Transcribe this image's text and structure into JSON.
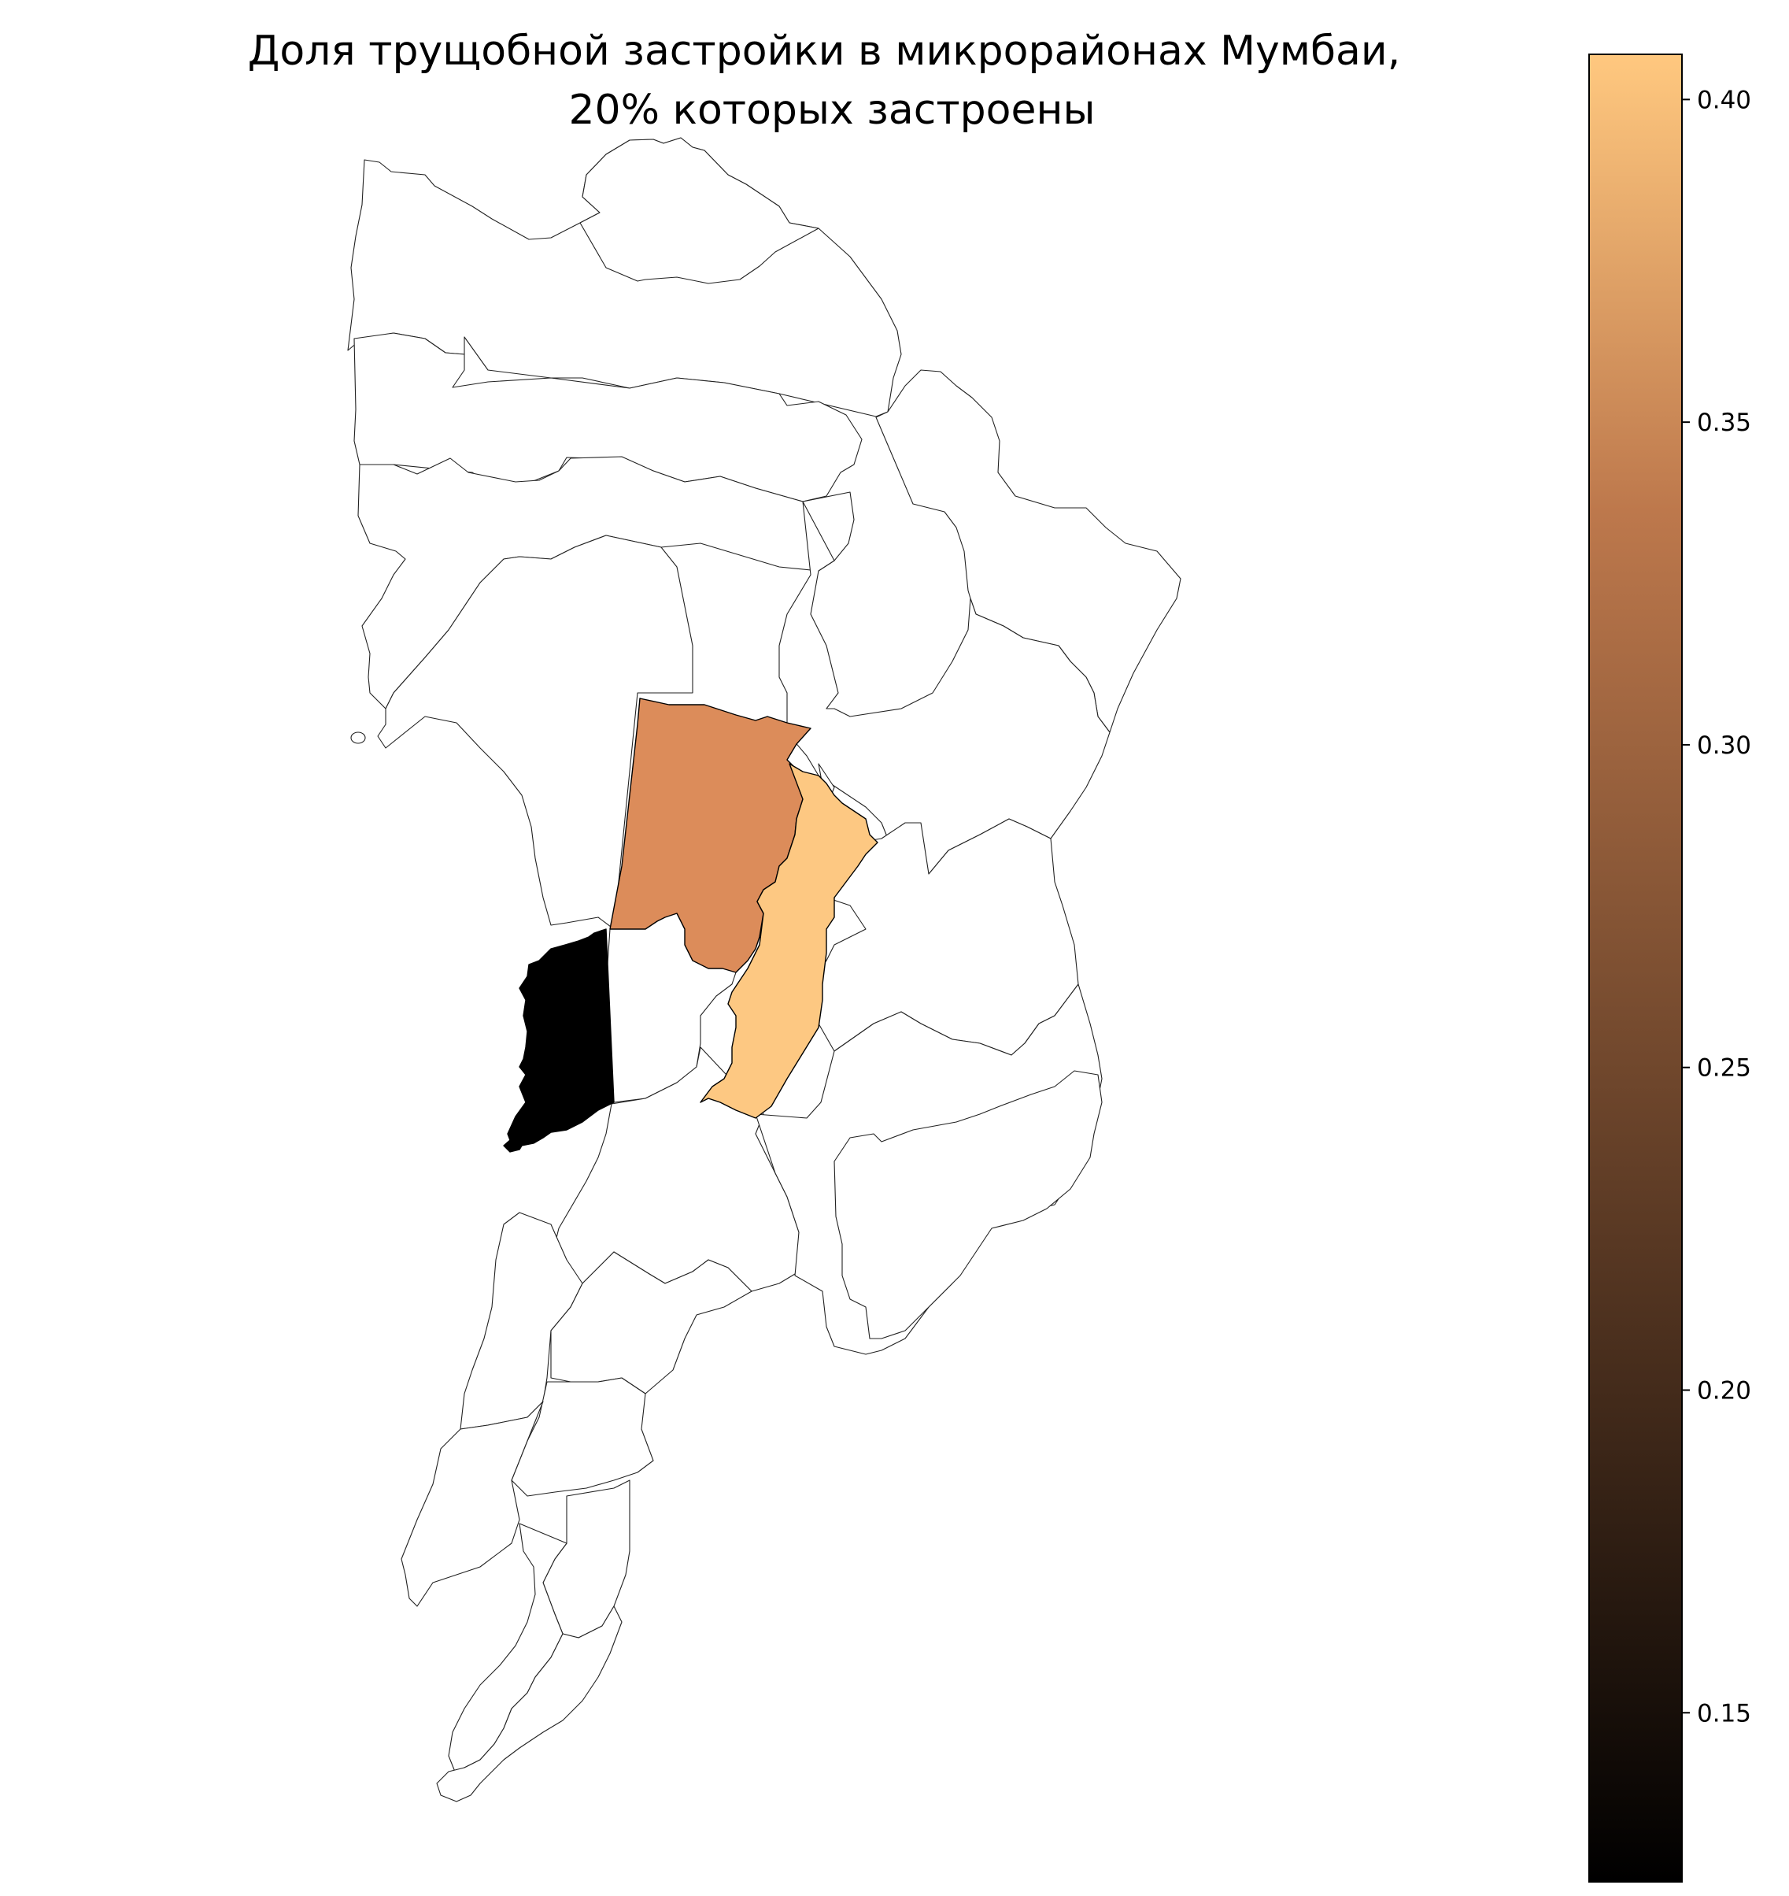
{
  "title_lines": [
    "Доля трущобной застройки в микрорайонах Мумбаи,",
    "20% которых застроены"
  ],
  "colorbar": {
    "colormap": "copper",
    "vmin": 0.1238,
    "vmax": 0.407,
    "ticks": [
      {
        "value": 0.15,
        "label": "0.15"
      },
      {
        "value": 0.2,
        "label": "0.20"
      },
      {
        "value": 0.25,
        "label": "0.25"
      },
      {
        "value": 0.3,
        "label": "0.30"
      },
      {
        "value": 0.35,
        "label": "0.35"
      },
      {
        "value": 0.4,
        "label": "0.40"
      }
    ],
    "stops": [
      {
        "offset": 0.0,
        "color": "#000000"
      },
      {
        "offset": 0.25,
        "color": "#3f2819"
      },
      {
        "offset": 0.5,
        "color": "#7e5032"
      },
      {
        "offset": 0.75,
        "color": "#bd784c"
      },
      {
        "offset": 1.0,
        "color": "#ffc87f"
      }
    ]
  },
  "map": {
    "no_data_fill": "#ffffff",
    "highlighted_wards": [
      {
        "id": "ward-west-coast",
        "slum_share": 0.124,
        "fill": "#000000"
      },
      {
        "id": "ward-central-north",
        "slum_share": 0.313,
        "fill": "#dc8c5a"
      },
      {
        "id": "ward-central-east",
        "slum_share": 0.407,
        "fill": "#fdc882"
      }
    ]
  }
}
